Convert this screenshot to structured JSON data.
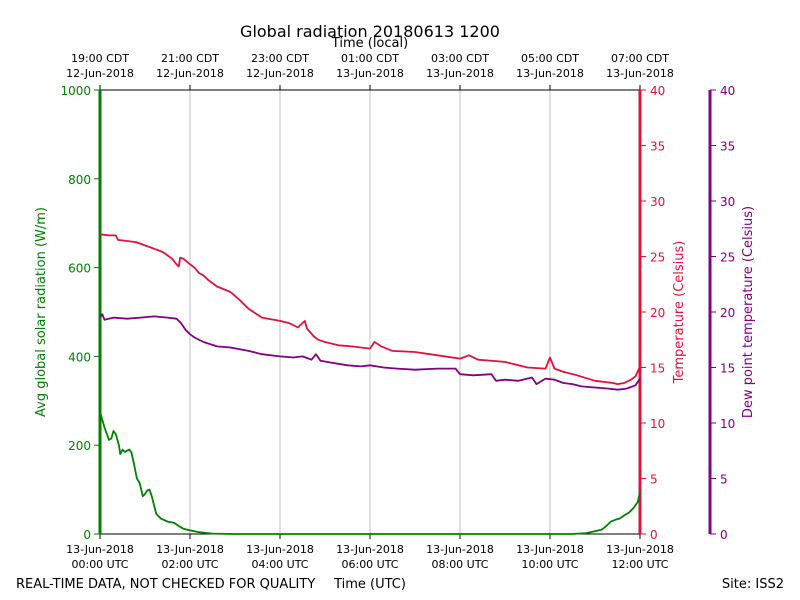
{
  "chart_data": {
    "type": "line",
    "title": "Global radiation 20180613 1200",
    "top_axis_title": "Time (local)",
    "bottom_axis_title": "Time (UTC)",
    "footer_left": "REAL-TIME DATA, NOT CHECKED FOR QUALITY",
    "footer_right": "Site: ISS2",
    "x_range_hours": [
      0,
      12
    ],
    "top_ticks": [
      {
        "hour": 0,
        "line1": "19:00 CDT",
        "line2": "12-Jun-2018"
      },
      {
        "hour": 2,
        "line1": "21:00 CDT",
        "line2": "12-Jun-2018"
      },
      {
        "hour": 4,
        "line1": "23:00 CDT",
        "line2": "12-Jun-2018"
      },
      {
        "hour": 6,
        "line1": "01:00 CDT",
        "line2": "13-Jun-2018"
      },
      {
        "hour": 8,
        "line1": "03:00 CDT",
        "line2": "13-Jun-2018"
      },
      {
        "hour": 10,
        "line1": "05:00 CDT",
        "line2": "13-Jun-2018"
      },
      {
        "hour": 12,
        "line1": "07:00 CDT",
        "line2": "13-Jun-2018"
      }
    ],
    "bottom_ticks": [
      {
        "hour": 0,
        "line1": "13-Jun-2018",
        "line2": "00:00 UTC"
      },
      {
        "hour": 2,
        "line1": "13-Jun-2018",
        "line2": "02:00 UTC"
      },
      {
        "hour": 4,
        "line1": "13-Jun-2018",
        "line2": "04:00 UTC"
      },
      {
        "hour": 6,
        "line1": "13-Jun-2018",
        "line2": "06:00 UTC"
      },
      {
        "hour": 8,
        "line1": "13-Jun-2018",
        "line2": "08:00 UTC"
      },
      {
        "hour": 10,
        "line1": "13-Jun-2018",
        "line2": "10:00 UTC"
      },
      {
        "hour": 12,
        "line1": "13-Jun-2018",
        "line2": "12:00 UTC"
      }
    ],
    "axes": {
      "radiation": {
        "label": "Avg global solar radiation (W/m)",
        "range": [
          0,
          1000
        ],
        "ticks": [
          0,
          200,
          400,
          600,
          800,
          1000
        ],
        "color": "#008000"
      },
      "temperature": {
        "label": "Temperature (Celsius)",
        "range": [
          0,
          40
        ],
        "ticks": [
          0,
          5,
          10,
          15,
          20,
          25,
          30,
          35,
          40
        ],
        "color": "#dc143c"
      },
      "dewpoint": {
        "label": "Dew point temperature (Celsius)",
        "range": [
          0,
          40
        ],
        "ticks": [
          0,
          5,
          10,
          15,
          20,
          25,
          30,
          35,
          40
        ],
        "color": "#800080"
      }
    },
    "series": [
      {
        "name": "Avg global solar radiation",
        "axis": "radiation",
        "color": "#008000",
        "points": [
          [
            0,
            275
          ],
          [
            0.1,
            240
          ],
          [
            0.2,
            212
          ],
          [
            0.25,
            215
          ],
          [
            0.3,
            232
          ],
          [
            0.35,
            225
          ],
          [
            0.42,
            200
          ],
          [
            0.45,
            180
          ],
          [
            0.5,
            190
          ],
          [
            0.55,
            185
          ],
          [
            0.65,
            190
          ],
          [
            0.7,
            183
          ],
          [
            0.75,
            160
          ],
          [
            0.82,
            125
          ],
          [
            0.88,
            115
          ],
          [
            0.95,
            85
          ],
          [
            1.0,
            90
          ],
          [
            1.05,
            98
          ],
          [
            1.1,
            100
          ],
          [
            1.15,
            85
          ],
          [
            1.2,
            65
          ],
          [
            1.25,
            45
          ],
          [
            1.35,
            35
          ],
          [
            1.5,
            28
          ],
          [
            1.65,
            25
          ],
          [
            1.75,
            18
          ],
          [
            1.85,
            12
          ],
          [
            2.0,
            8
          ],
          [
            2.2,
            4
          ],
          [
            2.5,
            1
          ],
          [
            3.0,
            0
          ],
          [
            6.0,
            0
          ],
          [
            9.0,
            0
          ],
          [
            10.5,
            0
          ],
          [
            10.8,
            2
          ],
          [
            11.0,
            6
          ],
          [
            11.15,
            10
          ],
          [
            11.25,
            18
          ],
          [
            11.35,
            28
          ],
          [
            11.45,
            32
          ],
          [
            11.55,
            35
          ],
          [
            11.65,
            42
          ],
          [
            11.75,
            48
          ],
          [
            11.85,
            58
          ],
          [
            11.95,
            72
          ],
          [
            12.0,
            95
          ]
        ]
      },
      {
        "name": "Temperature",
        "axis": "temperature",
        "color": "#dc143c",
        "points": [
          [
            0,
            27.0
          ],
          [
            0.2,
            26.9
          ],
          [
            0.35,
            26.9
          ],
          [
            0.4,
            26.5
          ],
          [
            0.8,
            26.3
          ],
          [
            1.0,
            26.0
          ],
          [
            1.2,
            25.7
          ],
          [
            1.4,
            25.4
          ],
          [
            1.5,
            25.1
          ],
          [
            1.6,
            24.8
          ],
          [
            1.7,
            24.3
          ],
          [
            1.75,
            24.1
          ],
          [
            1.78,
            24.9
          ],
          [
            1.85,
            24.8
          ],
          [
            2.0,
            24.3
          ],
          [
            2.1,
            24.0
          ],
          [
            2.2,
            23.5
          ],
          [
            2.3,
            23.3
          ],
          [
            2.4,
            22.9
          ],
          [
            2.6,
            22.3
          ],
          [
            2.9,
            21.8
          ],
          [
            3.1,
            21.1
          ],
          [
            3.3,
            20.3
          ],
          [
            3.6,
            19.5
          ],
          [
            4.0,
            19.2
          ],
          [
            4.2,
            19.0
          ],
          [
            4.4,
            18.6
          ],
          [
            4.55,
            19.2
          ],
          [
            4.6,
            18.5
          ],
          [
            4.75,
            17.8
          ],
          [
            4.85,
            17.5
          ],
          [
            5.0,
            17.3
          ],
          [
            5.3,
            17.0
          ],
          [
            5.6,
            16.9
          ],
          [
            5.8,
            16.8
          ],
          [
            6.0,
            16.7
          ],
          [
            6.1,
            17.3
          ],
          [
            6.25,
            16.9
          ],
          [
            6.5,
            16.5
          ],
          [
            7.0,
            16.4
          ],
          [
            7.5,
            16.1
          ],
          [
            8.0,
            15.8
          ],
          [
            8.2,
            16.1
          ],
          [
            8.4,
            15.7
          ],
          [
            9.0,
            15.5
          ],
          [
            9.3,
            15.2
          ],
          [
            9.5,
            15.0
          ],
          [
            9.9,
            14.9
          ],
          [
            10.0,
            15.9
          ],
          [
            10.1,
            14.9
          ],
          [
            10.3,
            14.6
          ],
          [
            10.6,
            14.3
          ],
          [
            11.0,
            13.8
          ],
          [
            11.2,
            13.7
          ],
          [
            11.4,
            13.6
          ],
          [
            11.5,
            13.5
          ],
          [
            11.65,
            13.6
          ],
          [
            11.8,
            13.9
          ],
          [
            11.9,
            14.2
          ],
          [
            12.0,
            15.1
          ]
        ]
      },
      {
        "name": "Dew point temperature",
        "axis": "dewpoint",
        "color": "#800080",
        "points": [
          [
            0,
            19.5
          ],
          [
            0.05,
            19.8
          ],
          [
            0.1,
            19.3
          ],
          [
            0.3,
            19.5
          ],
          [
            0.6,
            19.4
          ],
          [
            0.9,
            19.5
          ],
          [
            1.2,
            19.6
          ],
          [
            1.5,
            19.5
          ],
          [
            1.7,
            19.4
          ],
          [
            1.8,
            19.0
          ],
          [
            1.9,
            18.4
          ],
          [
            2.0,
            18.0
          ],
          [
            2.1,
            17.7
          ],
          [
            2.3,
            17.3
          ],
          [
            2.6,
            16.9
          ],
          [
            2.9,
            16.8
          ],
          [
            3.3,
            16.5
          ],
          [
            3.6,
            16.2
          ],
          [
            4.0,
            16.0
          ],
          [
            4.3,
            15.9
          ],
          [
            4.5,
            16.0
          ],
          [
            4.7,
            15.7
          ],
          [
            4.8,
            16.2
          ],
          [
            4.9,
            15.6
          ],
          [
            5.2,
            15.4
          ],
          [
            5.5,
            15.2
          ],
          [
            5.8,
            15.1
          ],
          [
            6.0,
            15.2
          ],
          [
            6.3,
            15.0
          ],
          [
            6.6,
            14.9
          ],
          [
            7.0,
            14.8
          ],
          [
            7.5,
            14.9
          ],
          [
            7.9,
            14.9
          ],
          [
            8.0,
            14.4
          ],
          [
            8.3,
            14.3
          ],
          [
            8.7,
            14.4
          ],
          [
            8.8,
            13.8
          ],
          [
            9.0,
            13.9
          ],
          [
            9.3,
            13.8
          ],
          [
            9.6,
            14.1
          ],
          [
            9.7,
            13.5
          ],
          [
            9.9,
            14.0
          ],
          [
            10.1,
            13.9
          ],
          [
            10.3,
            13.6
          ],
          [
            10.5,
            13.5
          ],
          [
            10.7,
            13.3
          ],
          [
            11.0,
            13.2
          ],
          [
            11.3,
            13.1
          ],
          [
            11.5,
            13.0
          ],
          [
            11.7,
            13.1
          ],
          [
            11.9,
            13.4
          ],
          [
            12.0,
            14.0
          ]
        ]
      }
    ]
  }
}
